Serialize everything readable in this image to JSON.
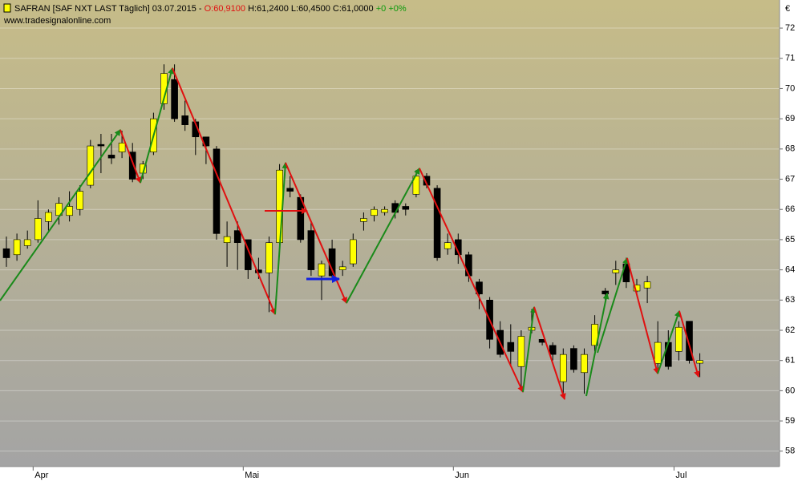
{
  "chart_data": {
    "type": "candlestick",
    "title": "SAFRAN [SAF NXT LAST Täglich] 03.07.2015 -",
    "quote": {
      "open": "O:60,9100",
      "high": "H:61,2400",
      "low": "L:60,4500",
      "close": "C:61,0000",
      "change": "+0 +0%"
    },
    "source": "www.tradesignalonline.com",
    "currency": "€",
    "up_color": "#ffff00",
    "down_color": "#000000",
    "categories": [
      null,
      null,
      null,
      "Apr",
      null,
      null,
      null,
      null,
      null,
      null,
      null,
      null,
      null,
      null,
      null,
      null,
      null,
      null,
      null,
      null,
      null,
      null,
      null,
      "Mai",
      null,
      null,
      null,
      null,
      null,
      null,
      null,
      null,
      null,
      null,
      null,
      null,
      null,
      null,
      null,
      null,
      null,
      null,
      null,
      "Jun",
      null,
      null,
      null,
      null,
      null,
      null,
      null,
      null,
      null,
      null,
      null,
      null,
      null,
      null,
      null,
      null,
      null,
      null,
      null,
      null,
      "Jul",
      null,
      null
    ],
    "open": [
      64.7,
      64.5,
      64.8,
      65.0,
      65.6,
      65.8,
      65.8,
      66.0,
      66.8,
      68.15,
      67.8,
      67.9,
      67.9,
      67.2,
      67.9,
      69.5,
      70.3,
      69.1,
      68.9,
      68.4,
      68.0,
      64.9,
      65.3,
      65.0,
      64.0,
      63.9,
      64.9,
      66.7,
      66.4,
      65.3,
      63.8,
      64.7,
      64.0,
      64.2,
      65.6,
      65.8,
      65.9,
      66.2,
      66.1,
      66.5,
      67.1,
      66.7,
      64.7,
      65.0,
      64.5,
      63.6,
      63.0,
      62.0,
      61.6,
      60.8,
      62.0,
      61.7,
      61.5,
      60.3,
      61.4,
      60.6,
      61.5,
      63.3,
      63.9,
      64.2,
      63.3,
      63.4,
      60.9,
      61.6,
      61.3,
      62.3,
      60.91
    ],
    "high": [
      65.1,
      65.2,
      65.3,
      66.3,
      66.0,
      66.4,
      66.6,
      66.8,
      68.3,
      68.5,
      68.5,
      68.6,
      68.2,
      67.6,
      69.2,
      70.8,
      70.8,
      69.6,
      69.0,
      68.4,
      68.1,
      65.6,
      65.6,
      65.0,
      64.4,
      65.1,
      67.5,
      67.1,
      66.5,
      65.6,
      64.3,
      65.0,
      64.3,
      65.2,
      65.9,
      66.1,
      66.1,
      66.3,
      66.2,
      67.3,
      67.2,
      66.8,
      65.2,
      65.2,
      64.6,
      63.7,
      63.1,
      62.3,
      62.2,
      62.0,
      62.7,
      61.7,
      61.6,
      61.4,
      61.5,
      61.4,
      62.5,
      63.4,
      64.3,
      64.4,
      63.7,
      63.8,
      62.3,
      62.0,
      62.3,
      62.3,
      61.24
    ],
    "low": [
      64.1,
      64.3,
      64.7,
      64.9,
      65.3,
      65.5,
      65.6,
      65.8,
      66.7,
      67.2,
      67.5,
      67.7,
      66.9,
      67.0,
      67.8,
      69.3,
      68.9,
      68.6,
      67.8,
      67.5,
      65.0,
      64.1,
      64.0,
      63.7,
      63.7,
      62.6,
      64.7,
      66.4,
      64.9,
      63.8,
      63.0,
      63.7,
      63.8,
      64.1,
      65.3,
      65.6,
      65.8,
      65.7,
      65.8,
      66.4,
      66.7,
      64.3,
      64.5,
      64.2,
      63.6,
      62.7,
      61.4,
      61.1,
      60.8,
      60.0,
      61.9,
      61.5,
      61.0,
      59.9,
      60.6,
      59.9,
      61.3,
      63.0,
      63.5,
      63.4,
      63.2,
      62.9,
      60.7,
      60.7,
      61.0,
      60.9,
      60.45
    ],
    "close": [
      64.4,
      65.0,
      65.0,
      65.7,
      65.9,
      66.2,
      66.1,
      66.6,
      68.1,
      68.1,
      67.7,
      68.2,
      67.0,
      67.5,
      69.0,
      70.5,
      69.0,
      68.8,
      68.4,
      68.1,
      65.2,
      65.1,
      64.9,
      64.0,
      63.9,
      64.9,
      67.3,
      66.6,
      65.0,
      64.0,
      64.2,
      63.8,
      64.1,
      65.0,
      65.7,
      66.0,
      66.0,
      65.9,
      66.0,
      67.1,
      66.8,
      64.4,
      64.9,
      64.5,
      63.8,
      63.2,
      61.7,
      61.2,
      61.3,
      61.8,
      62.1,
      61.6,
      61.2,
      61.2,
      60.7,
      61.2,
      62.2,
      63.2,
      64.0,
      63.6,
      63.5,
      63.6,
      61.6,
      60.8,
      62.1,
      61.0,
      61.0
    ],
    "ylim": [
      57.49,
      72.93
    ],
    "yticks": [
      58,
      59,
      60,
      61,
      62,
      63,
      64,
      65,
      66,
      67,
      68,
      69,
      70,
      71,
      72
    ],
    "grid": true
  }
}
